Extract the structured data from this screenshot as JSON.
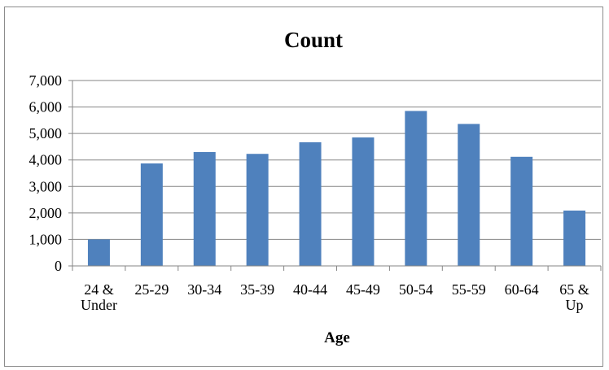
{
  "chart_data": {
    "type": "bar",
    "title": "Count",
    "xlabel": "Age",
    "ylabel": "",
    "categories": [
      [
        "24 &",
        "Under"
      ],
      [
        "25-29"
      ],
      [
        "30-34"
      ],
      [
        "35-39"
      ],
      [
        "40-44"
      ],
      [
        "45-49"
      ],
      [
        "50-54"
      ],
      [
        "55-59"
      ],
      [
        "60-64"
      ],
      [
        "65 &",
        "Up"
      ]
    ],
    "values": [
      1000,
      3870,
      4300,
      4230,
      4670,
      4850,
      5850,
      5360,
      4120,
      2090
    ],
    "ylim": [
      0,
      7000
    ],
    "yticks": [
      0,
      1000,
      2000,
      3000,
      4000,
      5000,
      6000,
      7000
    ],
    "ytick_labels": [
      "0",
      "1,000",
      "2,000",
      "3,000",
      "4,000",
      "5,000",
      "6,000",
      "7,000"
    ],
    "grid": true,
    "legend": "none",
    "bar_color": "#4f81bd",
    "gridline_color": "#868686",
    "axis_color": "#868686"
  }
}
